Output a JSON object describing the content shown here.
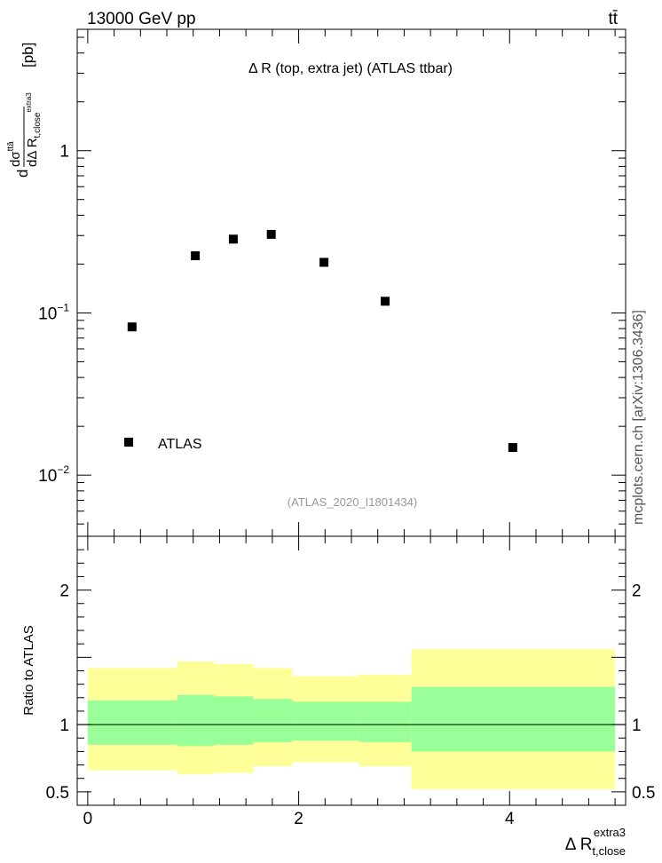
{
  "header": {
    "left": "13000 GeV pp",
    "right": "tt̄"
  },
  "side_label": "mcplots.cern.ch [arXiv:1306.3436]",
  "chart_data": [
    {
      "type": "scatter",
      "title": "Δ R (top, extra jet) (ATLAS ttbar)",
      "watermark": "(ATLAS_2020_I1801434)",
      "ylabel": {
        "num": "dσ",
        "num_sup": "ttā",
        "den": "dΔ R",
        "den_sub": "t,close",
        "den_sup": "extra3",
        "unit": "[pb]"
      },
      "yscale": "log",
      "ylim": [
        0.0042,
        5.6
      ],
      "xlim": [
        -0.1,
        5.1
      ],
      "y_ticks": [
        {
          "value": 1,
          "base": "1",
          "exp": ""
        },
        {
          "value": 0.1,
          "base": "10",
          "exp": "−1"
        },
        {
          "value": 0.01,
          "base": "10",
          "exp": "−2"
        }
      ],
      "legend": {
        "label": "ATLAS",
        "position": "bottom-left"
      },
      "series": [
        {
          "name": "ATLAS",
          "x": [
            0.42,
            1.02,
            1.38,
            1.74,
            2.24,
            2.82,
            4.03
          ],
          "y": [
            0.082,
            0.225,
            0.285,
            0.305,
            0.205,
            0.118,
            0.0148
          ]
        }
      ]
    },
    {
      "type": "area",
      "ylabel": "Ratio to ATLAS",
      "xlabel": {
        "main": "Δ R",
        "sub": "t,close",
        "sup": "extra3"
      },
      "xlim": [
        -0.1,
        5.1
      ],
      "ylim": [
        0.4,
        2.4
      ],
      "x_ticks": [
        {
          "value": 0,
          "label": "0"
        },
        {
          "value": 2,
          "label": "2"
        },
        {
          "value": 4,
          "label": "4"
        }
      ],
      "y_ticks": [
        {
          "value": 2,
          "label": "2"
        },
        {
          "value": 1,
          "label": "1"
        },
        {
          "value": 0.5,
          "label": "0.5"
        }
      ],
      "bins": [
        {
          "lo": 0.0,
          "hi": 0.85,
          "green": [
            0.85,
            1.18
          ],
          "yellow": [
            0.66,
            1.42
          ]
        },
        {
          "lo": 0.85,
          "hi": 1.2,
          "green": [
            0.84,
            1.22
          ],
          "yellow": [
            0.63,
            1.47
          ]
        },
        {
          "lo": 1.2,
          "hi": 1.57,
          "green": [
            0.85,
            1.21
          ],
          "yellow": [
            0.64,
            1.45
          ]
        },
        {
          "lo": 1.57,
          "hi": 1.94,
          "green": [
            0.87,
            1.19
          ],
          "yellow": [
            0.69,
            1.42
          ]
        },
        {
          "lo": 1.94,
          "hi": 2.57,
          "green": [
            0.88,
            1.17
          ],
          "yellow": [
            0.72,
            1.36
          ]
        },
        {
          "lo": 2.57,
          "hi": 3.07,
          "green": [
            0.87,
            1.17
          ],
          "yellow": [
            0.69,
            1.37
          ]
        },
        {
          "lo": 3.07,
          "hi": 5.0,
          "green": [
            0.8,
            1.28
          ],
          "yellow": [
            0.52,
            1.56
          ]
        }
      ],
      "colors": {
        "green": "#99ff99",
        "yellow": "#ffff99"
      }
    }
  ]
}
